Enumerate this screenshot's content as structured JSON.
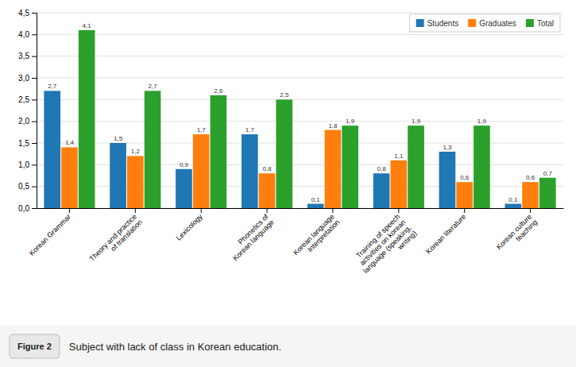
{
  "chart_data": {
    "type": "bar",
    "categories": [
      "Korean Grammar",
      "Theory and practice\nof translation",
      "Lexicology",
      "Phonetics of\nKorean language",
      "Korean language\nInterpretation",
      "Training of speech\nactivities on korean\nlanguage (speaking,\nwriting)",
      "Korean literature",
      "Korean culture\nteaching"
    ],
    "series": [
      {
        "name": "Students",
        "values": [
          2.7,
          1.5,
          0.9,
          1.7,
          0.1,
          0.8,
          1.3,
          0.1
        ],
        "value_labels": [
          "2,7",
          "1,5",
          "0,9",
          "1,7",
          "0,1",
          "0,8",
          "1,3",
          "0,1"
        ]
      },
      {
        "name": "Graduates",
        "values": [
          1.4,
          1.2,
          1.7,
          0.8,
          1.8,
          1.1,
          0.6,
          0.6
        ],
        "value_labels": [
          "1,4",
          "1,2",
          "1,7",
          "0,8",
          "1,8",
          "1,1",
          "0,6",
          "0,6"
        ]
      },
      {
        "name": "Total",
        "values": [
          4.1,
          2.7,
          2.6,
          2.5,
          1.9,
          1.9,
          1.9,
          0.7
        ],
        "value_labels": [
          "4,1",
          "2,7",
          "2,6",
          "2,5",
          "1,9",
          "1,9",
          "1,9",
          "0,7"
        ]
      }
    ],
    "ylim": [
      0,
      4.5
    ],
    "yticks": [
      {
        "value": 0.0,
        "label": "0,0"
      },
      {
        "value": 0.5,
        "label": "0,5"
      },
      {
        "value": 1.0,
        "label": "1,0"
      },
      {
        "value": 1.5,
        "label": "1,5"
      },
      {
        "value": 2.0,
        "label": "2,0"
      },
      {
        "value": 2.5,
        "label": "2,5"
      },
      {
        "value": 3.0,
        "label": "3,0"
      },
      {
        "value": 3.5,
        "label": "3,5"
      },
      {
        "value": 4.0,
        "label": "4,0"
      },
      {
        "value": 4.5,
        "label": "4,5"
      }
    ],
    "grid": true,
    "legend": "upper right",
    "data_labels": true,
    "annotations": [
      "Figure 2",
      "Subject with lack of class in Korean education."
    ]
  }
}
